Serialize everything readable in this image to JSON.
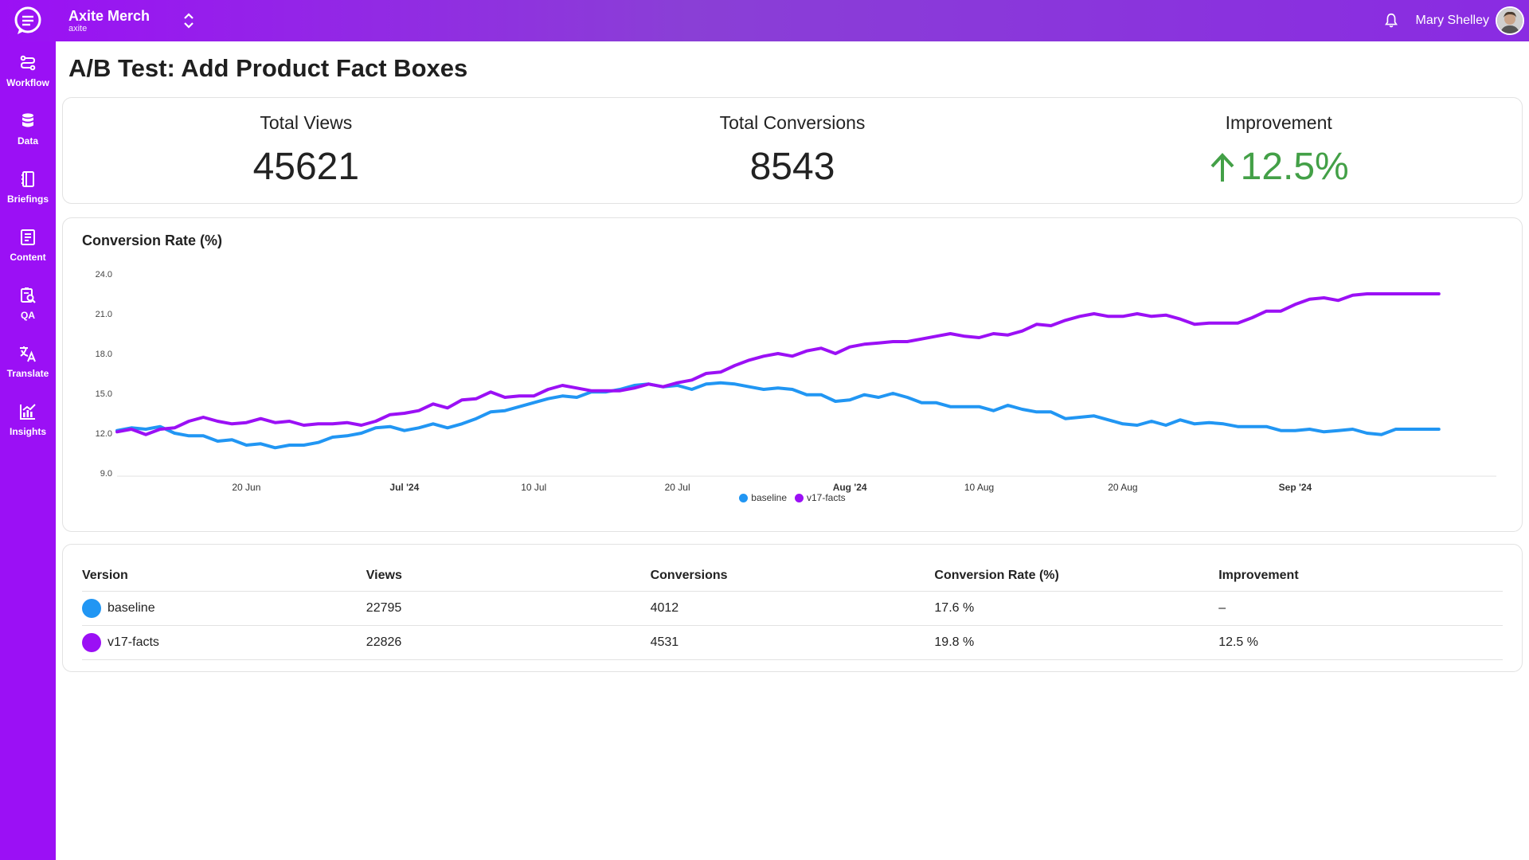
{
  "header": {
    "org_name": "Axite Merch",
    "org_sub": "axite",
    "user_name": "Mary Shelley"
  },
  "sidebar": {
    "items": [
      {
        "label": "Workflow",
        "icon": "workflow-icon"
      },
      {
        "label": "Data",
        "icon": "database-icon"
      },
      {
        "label": "Briefings",
        "icon": "notebook-icon"
      },
      {
        "label": "Content",
        "icon": "document-icon"
      },
      {
        "label": "QA",
        "icon": "qa-search-icon"
      },
      {
        "label": "Translate",
        "icon": "translate-icon"
      },
      {
        "label": "Insights",
        "icon": "insights-icon"
      }
    ]
  },
  "page": {
    "title": "A/B Test: Add Product Fact Boxes"
  },
  "kpis": {
    "views_label": "Total Views",
    "views_value": "45621",
    "conversions_label": "Total Conversions",
    "conversions_value": "8543",
    "improvement_label": "Improvement",
    "improvement_value": "12.5%"
  },
  "colors": {
    "brand": "#9b10f5",
    "baseline": "#2196f3",
    "variant": "#9b10f5",
    "positive": "#43a047"
  },
  "chart_data": {
    "type": "line",
    "title": "Conversion Rate (%)",
    "ylim": [
      9.0,
      24.0
    ],
    "y_ticks": [
      "24.0",
      "21.0",
      "18.0",
      "15.0",
      "12.0",
      "9.0"
    ],
    "x_range": [
      "2024-06-11",
      "2024-09-15"
    ],
    "x_ticks": [
      {
        "label": "20 Jun",
        "date": "2024-06-20",
        "bold": false
      },
      {
        "label": "Jul '24",
        "date": "2024-07-01",
        "bold": true
      },
      {
        "label": "10 Jul",
        "date": "2024-07-10",
        "bold": false
      },
      {
        "label": "20 Jul",
        "date": "2024-07-20",
        "bold": false
      },
      {
        "label": "Aug '24",
        "date": "2024-08-01",
        "bold": true
      },
      {
        "label": "10 Aug",
        "date": "2024-08-10",
        "bold": false
      },
      {
        "label": "20 Aug",
        "date": "2024-08-20",
        "bold": false
      },
      {
        "label": "Sep '24",
        "date": "2024-09-01",
        "bold": true
      }
    ],
    "x": [
      "2024-06-11",
      "2024-06-12",
      "2024-06-13",
      "2024-06-14",
      "2024-06-15",
      "2024-06-16",
      "2024-06-17",
      "2024-06-18",
      "2024-06-19",
      "2024-06-20",
      "2024-06-21",
      "2024-06-22",
      "2024-06-23",
      "2024-06-24",
      "2024-06-25",
      "2024-06-26",
      "2024-06-27",
      "2024-06-28",
      "2024-06-29",
      "2024-06-30",
      "2024-07-01",
      "2024-07-02",
      "2024-07-03",
      "2024-07-04",
      "2024-07-05",
      "2024-07-06",
      "2024-07-07",
      "2024-07-08",
      "2024-07-09",
      "2024-07-10",
      "2024-07-11",
      "2024-07-12",
      "2024-07-13",
      "2024-07-14",
      "2024-07-15",
      "2024-07-16",
      "2024-07-17",
      "2024-07-18",
      "2024-07-19",
      "2024-07-20",
      "2024-07-21",
      "2024-07-22",
      "2024-07-23",
      "2024-07-24",
      "2024-07-25",
      "2024-07-26",
      "2024-07-27",
      "2024-07-28",
      "2024-07-29",
      "2024-07-30",
      "2024-07-31",
      "2024-08-01",
      "2024-08-02",
      "2024-08-03",
      "2024-08-04",
      "2024-08-05",
      "2024-08-06",
      "2024-08-07",
      "2024-08-08",
      "2024-08-09",
      "2024-08-10",
      "2024-08-11",
      "2024-08-12",
      "2024-08-13",
      "2024-08-14",
      "2024-08-15",
      "2024-08-16",
      "2024-08-17",
      "2024-08-18",
      "2024-08-19",
      "2024-08-20",
      "2024-08-21",
      "2024-08-22",
      "2024-08-23",
      "2024-08-24",
      "2024-08-25",
      "2024-08-26",
      "2024-08-27",
      "2024-08-28",
      "2024-08-29",
      "2024-08-30",
      "2024-08-31",
      "2024-09-01",
      "2024-09-02",
      "2024-09-03",
      "2024-09-04",
      "2024-09-05",
      "2024-09-06",
      "2024-09-07",
      "2024-09-08",
      "2024-09-09",
      "2024-09-10",
      "2024-09-11"
    ],
    "series": [
      {
        "name": "baseline",
        "color": "#2196f3",
        "values": [
          12.2,
          12.4,
          12.3,
          12.5,
          12.0,
          11.8,
          11.8,
          11.4,
          11.5,
          11.1,
          11.2,
          10.9,
          11.1,
          11.1,
          11.3,
          11.7,
          11.8,
          12.0,
          12.4,
          12.5,
          12.2,
          12.4,
          12.7,
          12.4,
          12.7,
          13.1,
          13.6,
          13.7,
          14.0,
          14.3,
          14.6,
          14.8,
          14.7,
          15.1,
          15.1,
          15.3,
          15.6,
          15.7,
          15.5,
          15.6,
          15.3,
          15.7,
          15.8,
          15.7,
          15.5,
          15.3,
          15.4,
          15.3,
          14.9,
          14.9,
          14.4,
          14.5,
          14.9,
          14.7,
          15.0,
          14.7,
          14.3,
          14.3,
          14.0,
          14.0,
          14.0,
          13.7,
          14.1,
          13.8,
          13.6,
          13.6,
          13.1,
          13.2,
          13.3,
          13.0,
          12.7,
          12.6,
          12.9,
          12.6,
          13.0,
          12.7,
          12.8,
          12.7,
          12.5,
          12.5,
          12.5,
          12.2,
          12.2,
          12.3,
          12.1,
          12.2,
          12.3,
          12.0,
          11.9,
          12.3,
          12.3,
          12.3,
          12.3
        ]
      },
      {
        "name": "v17-facts",
        "color": "#9b10f5",
        "values": [
          12.1,
          12.3,
          11.9,
          12.3,
          12.4,
          12.9,
          13.2,
          12.9,
          12.7,
          12.8,
          13.1,
          12.8,
          12.9,
          12.6,
          12.7,
          12.7,
          12.8,
          12.6,
          12.9,
          13.4,
          13.5,
          13.7,
          14.2,
          13.9,
          14.5,
          14.6,
          15.1,
          14.7,
          14.8,
          14.8,
          15.3,
          15.6,
          15.4,
          15.2,
          15.2,
          15.2,
          15.4,
          15.7,
          15.5,
          15.8,
          16.0,
          16.5,
          16.6,
          17.1,
          17.5,
          17.8,
          18.0,
          17.8,
          18.2,
          18.4,
          18.0,
          18.5,
          18.7,
          18.8,
          18.9,
          18.9,
          19.1,
          19.3,
          19.5,
          19.3,
          19.2,
          19.5,
          19.4,
          19.7,
          20.2,
          20.1,
          20.5,
          20.8,
          21.0,
          20.8,
          20.8,
          21.0,
          20.8,
          20.9,
          20.6,
          20.2,
          20.3,
          20.3,
          20.3,
          20.7,
          21.2,
          21.2,
          21.7,
          22.1,
          22.2,
          22.0,
          22.4,
          22.5,
          22.5,
          22.5,
          22.5,
          22.5,
          22.5
        ]
      }
    ]
  },
  "table": {
    "headers": [
      "Version",
      "Views",
      "Conversions",
      "Conversion Rate (%)",
      "Improvement"
    ],
    "rows": [
      {
        "version": "baseline",
        "color": "#2196f3",
        "views": "22795",
        "conversions": "4012",
        "rate": "17.6 %",
        "improvement": "–"
      },
      {
        "version": "v17-facts",
        "color": "#9b10f5",
        "views": "22826",
        "conversions": "4531",
        "rate": "19.8 %",
        "improvement": "12.5 %"
      }
    ]
  }
}
